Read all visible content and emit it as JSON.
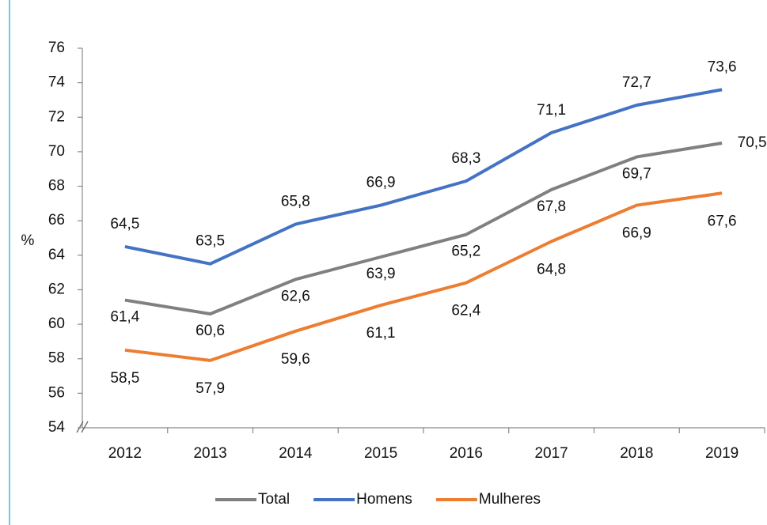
{
  "chart_data": {
    "type": "line",
    "y_label": "%",
    "categories": [
      "2012",
      "2013",
      "2014",
      "2015",
      "2016",
      "2017",
      "2018",
      "2019"
    ],
    "series": [
      {
        "name": "Total",
        "color": "#808080",
        "values": [
          61.4,
          60.6,
          62.6,
          63.9,
          65.2,
          67.8,
          69.7,
          70.5
        ],
        "value_labels": [
          "61,4",
          "60,6",
          "62,6",
          "63,9",
          "65,2",
          "67,8",
          "69,7",
          "70,5"
        ]
      },
      {
        "name": "Homens",
        "color": "#4472c4",
        "values": [
          64.5,
          63.5,
          65.8,
          66.9,
          68.3,
          71.1,
          72.7,
          73.6
        ],
        "value_labels": [
          "64,5",
          "63,5",
          "65,8",
          "66,9",
          "68,3",
          "71,1",
          "72,7",
          "73,6"
        ]
      },
      {
        "name": "Mulheres",
        "color": "#ed7d31",
        "values": [
          58.5,
          57.9,
          59.6,
          61.1,
          62.4,
          64.8,
          66.9,
          67.6
        ],
        "value_labels": [
          "58,5",
          "57,9",
          "59,6",
          "61,1",
          "62,4",
          "64,8",
          "66,9",
          "67,6"
        ]
      }
    ],
    "ylim": [
      54,
      76
    ],
    "yticks": [
      54,
      56,
      58,
      60,
      62,
      64,
      66,
      68,
      70,
      72,
      74,
      76
    ],
    "legend": "bottom"
  }
}
